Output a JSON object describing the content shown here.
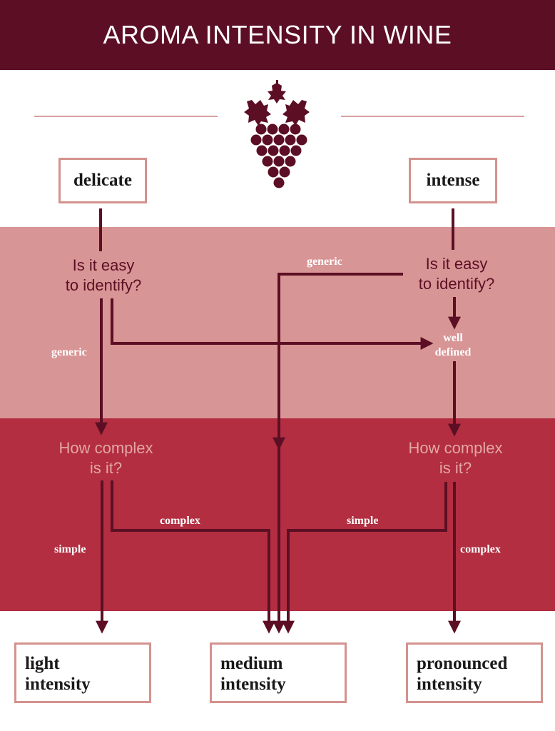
{
  "header": {
    "title": "AROMA INTENSITY IN WINE"
  },
  "icon": "grape-cluster-icon",
  "colors": {
    "header": "#5c0f24",
    "band_pink": "#d89595",
    "band_red": "#b22e40",
    "arrow": "#5c0f24",
    "box_border": "#d4928e"
  },
  "start_nodes": {
    "delicate": "delicate",
    "intense": "intense"
  },
  "questions": {
    "q1": [
      "Is it easy",
      "to identify?"
    ],
    "q2": [
      "Is it easy",
      "to identify?"
    ],
    "q3": [
      "How complex",
      "is it?"
    ],
    "q4": [
      "How complex",
      "is it?"
    ]
  },
  "edge_labels": {
    "generic_left": "generic",
    "generic_top": "generic",
    "well_defined": [
      "well",
      "defined"
    ],
    "simple_left": "simple",
    "complex_mid": "complex",
    "simple_mid": "simple",
    "complex_right": "complex"
  },
  "outcomes": {
    "light": [
      "light",
      "intensity"
    ],
    "medium": [
      "medium",
      "intensity"
    ],
    "pronounced": [
      "pronounced",
      "intensity"
    ]
  }
}
